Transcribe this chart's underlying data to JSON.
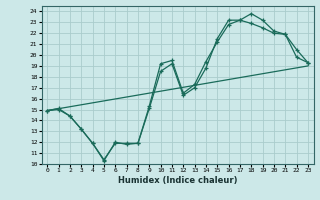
{
  "xlabel": "Humidex (Indice chaleur)",
  "ylabel": "",
  "bg_color": "#cce8e8",
  "grid_color": "#aacccc",
  "line_color": "#1a6b5a",
  "xlim": [
    -0.5,
    23.5
  ],
  "ylim": [
    10,
    24.5
  ],
  "xticks": [
    0,
    1,
    2,
    3,
    4,
    5,
    6,
    7,
    8,
    9,
    10,
    11,
    12,
    13,
    14,
    15,
    16,
    17,
    18,
    19,
    20,
    21,
    22,
    23
  ],
  "yticks": [
    10,
    11,
    12,
    13,
    14,
    15,
    16,
    17,
    18,
    19,
    20,
    21,
    22,
    23,
    24
  ],
  "line1_x": [
    0,
    1,
    2,
    3,
    4,
    5,
    6,
    7,
    8,
    9,
    10,
    11,
    12,
    13,
    14,
    15,
    16,
    17,
    18,
    19,
    20,
    21,
    22,
    23
  ],
  "line1_y": [
    14.9,
    15.1,
    14.4,
    13.2,
    11.9,
    10.4,
    11.9,
    11.9,
    11.9,
    15.3,
    19.2,
    19.5,
    16.5,
    17.3,
    19.4,
    21.2,
    22.8,
    23.2,
    22.9,
    22.5,
    22.0,
    21.9,
    20.5,
    19.3
  ],
  "line2_x": [
    0,
    1,
    2,
    3,
    4,
    5,
    6,
    7,
    8,
    9,
    10,
    11,
    12,
    13,
    14,
    15,
    16,
    17,
    18,
    19,
    20,
    21,
    22,
    23
  ],
  "line2_y": [
    14.9,
    15.0,
    14.4,
    13.2,
    11.9,
    10.3,
    12.0,
    11.8,
    11.9,
    15.1,
    18.5,
    19.2,
    16.3,
    17.0,
    18.8,
    21.5,
    23.2,
    23.2,
    23.8,
    23.2,
    22.2,
    21.9,
    19.8,
    19.3
  ],
  "line3_x": [
    0,
    23
  ],
  "line3_y": [
    14.9,
    19.0
  ]
}
